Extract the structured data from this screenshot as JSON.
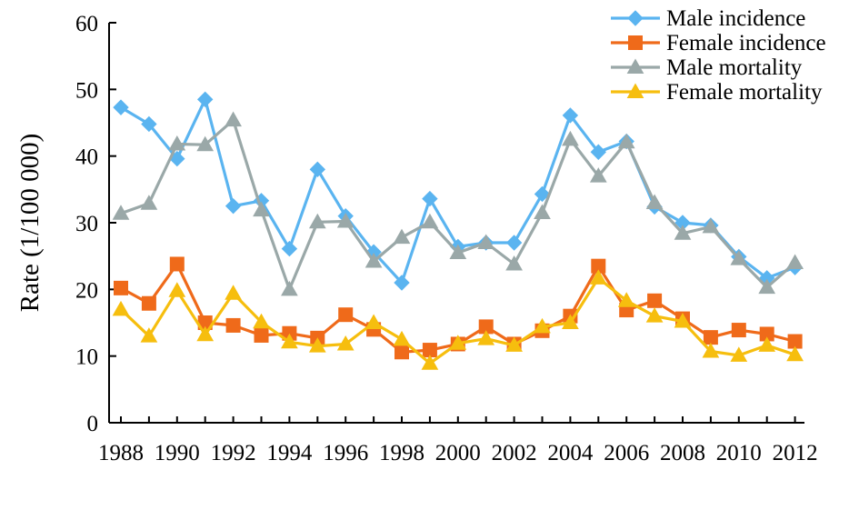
{
  "chart_data": {
    "type": "line",
    "title": "",
    "xlabel": "",
    "ylabel": "Rate (1/100 000)",
    "ylim": [
      0,
      60
    ],
    "yticks": [
      "0",
      "10",
      "20",
      "30",
      "40",
      "50",
      "60"
    ],
    "xticks": [
      "1988",
      "1990",
      "1992",
      "1994",
      "1996",
      "1998",
      "2000",
      "2002",
      "2004",
      "2006",
      "2008",
      "2010",
      "2012"
    ],
    "x": [
      1988,
      1989,
      1990,
      1991,
      1992,
      1993,
      1994,
      1995,
      1996,
      1997,
      1998,
      1999,
      2000,
      2001,
      2002,
      2003,
      2004,
      2005,
      2006,
      2007,
      2008,
      2009,
      2010,
      2011,
      2012
    ],
    "legend_position": "top-right",
    "grid": false,
    "series": [
      {
        "name": "Male incidence",
        "color": "#5ab4f0",
        "marker": "diamond",
        "values": [
          47.3,
          44.8,
          39.6,
          48.5,
          32.5,
          33.3,
          26.1,
          38.0,
          31.0,
          25.6,
          21.0,
          33.6,
          26.4,
          27.0,
          27.0,
          34.3,
          46.1,
          40.6,
          42.2,
          32.4,
          30.0,
          29.6,
          24.9,
          21.7,
          23.3
        ]
      },
      {
        "name": "Female incidence",
        "color": "#ef6a1a",
        "marker": "square",
        "values": [
          20.2,
          17.9,
          23.8,
          15.0,
          14.6,
          13.1,
          13.4,
          12.7,
          16.2,
          14.0,
          10.6,
          10.9,
          11.8,
          14.4,
          11.8,
          13.8,
          16.0,
          23.5,
          16.9,
          18.3,
          15.6,
          12.8,
          13.9,
          13.3,
          12.2
        ]
      },
      {
        "name": "Male mortality",
        "color": "#9aa8a8",
        "marker": "triangle",
        "values": [
          31.4,
          32.9,
          41.8,
          41.7,
          45.4,
          31.9,
          20.0,
          30.1,
          30.2,
          24.2,
          27.8,
          30.1,
          25.5,
          27.0,
          23.8,
          31.5,
          42.5,
          37.0,
          42.1,
          33.0,
          28.4,
          29.4,
          24.6,
          20.3,
          24.0
        ]
      },
      {
        "name": "Female mortality",
        "color": "#f6be0e",
        "marker": "triangle",
        "values": [
          17.0,
          13.0,
          19.8,
          13.2,
          19.4,
          15.1,
          12.1,
          11.5,
          11.8,
          15.0,
          12.5,
          8.9,
          11.9,
          12.6,
          11.6,
          14.4,
          15.0,
          21.7,
          18.3,
          16.0,
          15.2,
          10.7,
          10.1,
          11.6,
          10.2
        ]
      }
    ]
  }
}
